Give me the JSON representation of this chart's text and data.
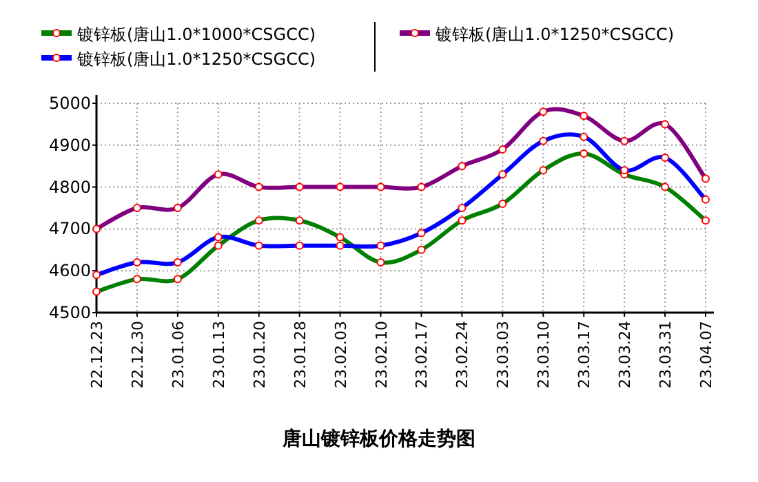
{
  "chart_data": {
    "type": "line",
    "title": "唐山镀锌板价格走势图",
    "categories": [
      "22.12.23",
      "22.12.30",
      "23.01.06",
      "23.01.13",
      "23.01.20",
      "23.01.28",
      "23.02.03",
      "23.02.10",
      "23.02.17",
      "23.02.24",
      "23.03.03",
      "23.03.10",
      "23.03.17",
      "23.03.24",
      "23.03.31",
      "23.04.07"
    ],
    "series": [
      {
        "name": "镀锌板(唐山1.0*1000*CSGCC)",
        "color": "#008000",
        "values": [
          4550,
          4580,
          4580,
          4660,
          4720,
          4720,
          4680,
          4620,
          4650,
          4720,
          4760,
          4840,
          4880,
          4830,
          4800,
          4720
        ]
      },
      {
        "name": "镀锌板(唐山1.0*1250*CSGCC)",
        "color": "#0000ff",
        "values": [
          4590,
          4620,
          4620,
          4680,
          4660,
          4660,
          4660,
          4660,
          4690,
          4750,
          4830,
          4910,
          4920,
          4840,
          4870,
          4770
        ]
      },
      {
        "name": "镀锌板(唐山1.0*1250*CSGCC)",
        "color": "#800080",
        "values": [
          4700,
          4750,
          4750,
          4830,
          4800,
          4800,
          4800,
          4800,
          4800,
          4850,
          4890,
          4980,
          4970,
          4910,
          4950,
          4820
        ]
      }
    ],
    "ylim": [
      4500,
      5000
    ],
    "yticks": [
      4500,
      4600,
      4700,
      4800,
      4900,
      5000
    ],
    "grid": true,
    "legend": "top",
    "marker": "circle",
    "line_style": "solid"
  }
}
